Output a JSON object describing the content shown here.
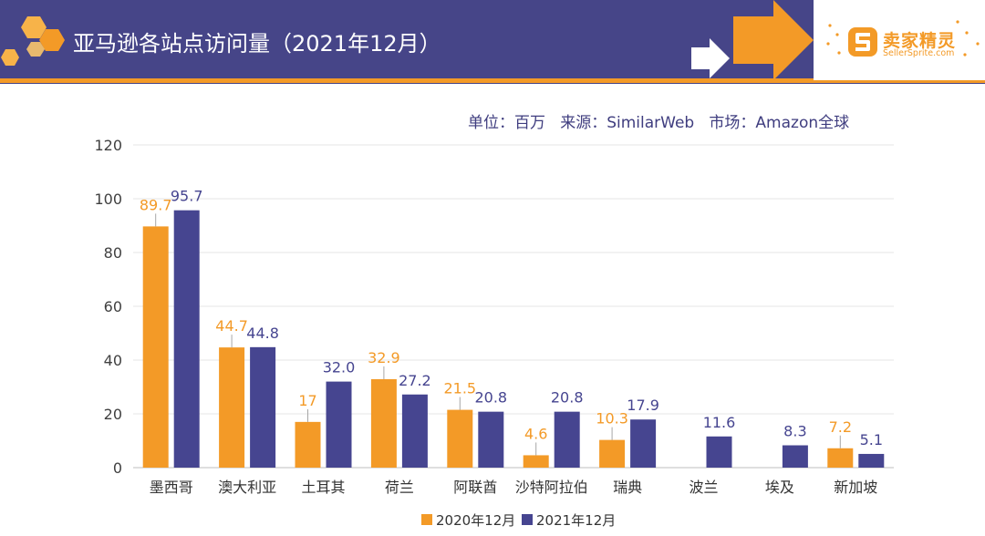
{
  "header": {
    "title": "亚马逊各站点访问量（2021年12月）",
    "logo_cn": "卖家精灵",
    "logo_en": "SellerSprite.com",
    "bg_color": "#464588",
    "accent_color": "#f39a27"
  },
  "source_line": "单位：百万   来源：SimilarWeb   市场：Amazon全球",
  "chart_data": {
    "type": "bar",
    "title": "亚马逊各站点访问量（2021年12月）",
    "xlabel": "",
    "ylabel": "",
    "ylim": [
      0,
      120
    ],
    "yticks": [
      0,
      20,
      40,
      60,
      80,
      100,
      120
    ],
    "grid": true,
    "legend_position": "bottom-center",
    "categories": [
      "墨西哥",
      "澳大利亚",
      "土耳其",
      "荷兰",
      "阿联酋",
      "沙特阿拉伯",
      "瑞典",
      "波兰",
      "埃及",
      "新加坡"
    ],
    "series": [
      {
        "name": "2020年12月",
        "color": "#f39a27",
        "values": [
          89.7,
          44.7,
          17,
          32.9,
          21.5,
          4.6,
          10.3,
          null,
          null,
          7.2
        ],
        "labels": [
          "89.7",
          "44.7",
          "17",
          "32.9",
          "21.5",
          "4.6",
          "10.3",
          "",
          "",
          "7.2"
        ]
      },
      {
        "name": "2021年12月",
        "color": "#464590",
        "values": [
          95.7,
          44.8,
          32.0,
          27.2,
          20.8,
          20.8,
          17.9,
          11.6,
          8.3,
          5.1
        ],
        "labels": [
          "95.7",
          "44.8",
          "32.0",
          "27.2",
          "20.8",
          "20.8",
          "17.9",
          "11.6",
          "8.3",
          "5.1"
        ]
      }
    ]
  }
}
